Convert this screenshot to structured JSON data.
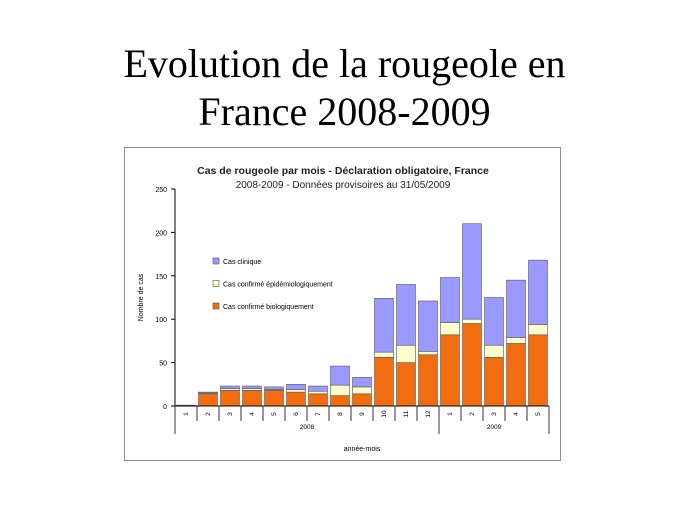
{
  "slide": {
    "title_line1": "Evolution de la rougeole en",
    "title_line2": "France 2008-2009"
  },
  "chart_data": {
    "type": "bar",
    "stacked": true,
    "title": "Cas de rougeole par mois - Déclaration obligatoire, France",
    "subtitle": "2008-2009 - Données provisoires au 31/05/2009",
    "xlabel": "année-mois",
    "ylabel": "Nombre de cas",
    "ylim": [
      0,
      250
    ],
    "yticks": [
      0,
      50,
      100,
      150,
      200,
      250
    ],
    "grid": false,
    "legend_position": "left-middle",
    "categories": [
      "1",
      "2",
      "3",
      "4",
      "5",
      "6",
      "7",
      "8",
      "9",
      "10",
      "11",
      "12",
      "1",
      "2",
      "3",
      "4",
      "5"
    ],
    "years": [
      {
        "label": "2008",
        "count": 12
      },
      {
        "label": "2009",
        "count": 5
      }
    ],
    "series": [
      {
        "name": "Cas confirmé biologiquement",
        "color": "#f26d0f",
        "values": [
          1,
          14,
          18,
          18,
          18,
          16,
          14,
          12,
          14,
          56,
          50,
          59,
          82,
          95,
          56,
          72,
          82
        ]
      },
      {
        "name": "Cas confirmé épidémiologiquement",
        "color": "#ffffcc",
        "values": [
          0,
          1,
          2,
          2,
          1,
          3,
          3,
          12,
          8,
          6,
          20,
          4,
          14,
          5,
          14,
          7,
          12
        ]
      },
      {
        "name": "Cas clinique",
        "color": "#9999ff",
        "values": [
          0,
          1,
          3,
          3,
          3,
          6,
          6,
          22,
          11,
          62,
          70,
          58,
          52,
          110,
          55,
          66,
          74
        ]
      }
    ],
    "legend_order": [
      "Cas clinique",
      "Cas confirmé épidémiologiquement",
      "Cas confirmé biologiquement"
    ]
  }
}
